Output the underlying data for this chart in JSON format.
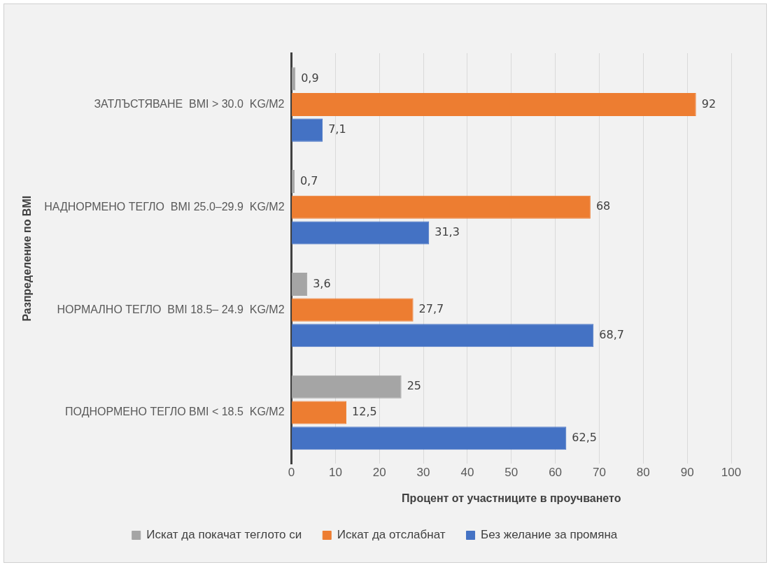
{
  "chart_data": {
    "type": "bar",
    "orientation": "horizontal",
    "xlabel": "Процент от участниците в проучването",
    "ylabel": "Разпределение по BMI",
    "categories": [
      "ЗАТЛЪСТЯВАНЕ  BMI > 30.0  KG/M2",
      "НАДНОРМЕНО ТЕГЛО  BMI 25.0–29.9  KG/M2",
      "НОРМАЛНО ТЕГЛО  BMI 18.5– 24.9  KG/M2",
      "ПОДНОРМЕНО ТЕГЛО BMI < 18.5  KG/M2"
    ],
    "series": [
      {
        "name": "Искат да покачат теглото си",
        "color": "#a5a5a5",
        "values": [
          0.9,
          0.7,
          3.6,
          25
        ],
        "value_labels": [
          "0,9",
          "0,7",
          "3,6",
          "25"
        ]
      },
      {
        "name": "Искат да отслабнат",
        "color": "#ed7d31",
        "values": [
          92,
          68,
          27.7,
          12.5
        ],
        "value_labels": [
          "92",
          "68",
          "27,7",
          "12,5"
        ]
      },
      {
        "name": "Без желание за промяна",
        "color": "#4472c4",
        "values": [
          7.1,
          31.3,
          68.7,
          62.5
        ],
        "value_labels": [
          "7,1",
          "31,3",
          "68,7",
          "62,5"
        ]
      }
    ],
    "xlim": [
      0,
      100
    ],
    "xticks": [
      0,
      10,
      20,
      30,
      40,
      50,
      60,
      70,
      80,
      90,
      100
    ],
    "grid": "x",
    "legend": "bottom"
  }
}
